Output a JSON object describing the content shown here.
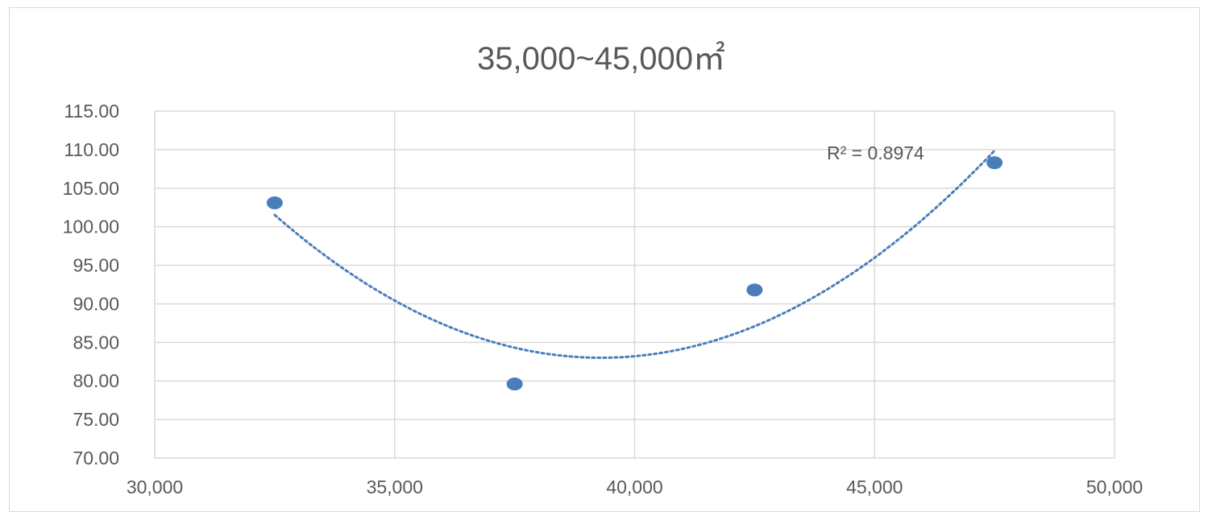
{
  "chart_data": {
    "type": "scatter",
    "title": "35,000~45,000㎡",
    "xlabel": "",
    "ylabel": "",
    "xlim": [
      30000,
      50000
    ],
    "ylim": [
      70,
      115
    ],
    "x_ticks": [
      30000,
      35000,
      40000,
      45000,
      50000
    ],
    "x_tick_labels": [
      "30,000",
      "35,000",
      "40,000",
      "45,000",
      "50,000"
    ],
    "y_ticks": [
      70,
      75,
      80,
      85,
      90,
      95,
      100,
      105,
      110,
      115
    ],
    "y_tick_labels": [
      "70.00",
      "75.00",
      "80.00",
      "85.00",
      "90.00",
      "95.00",
      "100.00",
      "105.00",
      "110.00",
      "115.00"
    ],
    "grid": true,
    "legend": "none",
    "series": [
      {
        "points": [
          {
            "x": 32500,
            "y": 103.1
          },
          {
            "x": 37500,
            "y": 79.6
          },
          {
            "x": 42500,
            "y": 91.8
          },
          {
            "x": 47500,
            "y": 108.3
          }
        ],
        "color": "#4a7ebb"
      }
    ],
    "trendline": {
      "type": "polynomial",
      "order": 2,
      "style": "dotted",
      "color": "#4a7ebb",
      "x_range": [
        32500,
        47500
      ],
      "label": "R² = 0.8974"
    }
  }
}
